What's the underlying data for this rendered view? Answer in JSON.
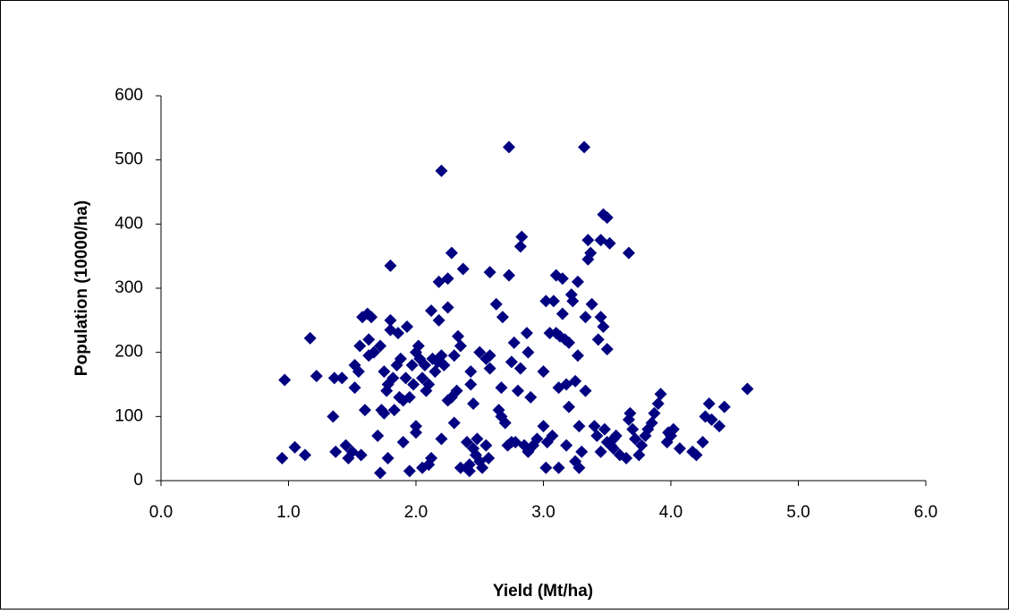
{
  "chart_data": {
    "type": "scatter",
    "x_label": "Yield (Mt/ha)",
    "y_label": "Population (10000/ha)",
    "color": "#000080",
    "xlim": [
      0,
      6
    ],
    "xticks": [
      {
        "value": 0,
        "label": "0.0"
      },
      {
        "value": 1,
        "label": "1.0"
      },
      {
        "value": 2,
        "label": "2.0"
      },
      {
        "value": 3,
        "label": "3.0"
      },
      {
        "value": 4,
        "label": "4.0"
      },
      {
        "value": 5,
        "label": "5.0"
      },
      {
        "value": 6,
        "label": "6.0"
      }
    ],
    "ylim": [
      0,
      600
    ],
    "yticks": [
      0,
      100,
      200,
      300,
      400,
      500,
      600
    ],
    "grid": false,
    "x": [
      0.95,
      0.97,
      1.05,
      1.13,
      1.17,
      1.22,
      1.35,
      1.36,
      1.37,
      1.42,
      1.45,
      1.47,
      1.5,
      1.52,
      1.52,
      1.55,
      1.56,
      1.57,
      1.58,
      1.6,
      1.62,
      1.63,
      1.63,
      1.65,
      1.67,
      1.7,
      1.72,
      1.72,
      1.73,
      1.75,
      1.75,
      1.77,
      1.78,
      1.78,
      1.8,
      1.8,
      1.8,
      1.82,
      1.83,
      1.85,
      1.86,
      1.87,
      1.88,
      1.9,
      1.9,
      1.92,
      1.93,
      1.95,
      1.95,
      1.97,
      1.98,
      2.0,
      2.0,
      2.0,
      2.02,
      2.03,
      2.05,
      2.05,
      2.07,
      2.08,
      2.1,
      2.1,
      2.12,
      2.12,
      2.13,
      2.15,
      2.17,
      2.18,
      2.18,
      2.2,
      2.2,
      2.2,
      2.22,
      2.25,
      2.25,
      2.25,
      2.28,
      2.28,
      2.3,
      2.3,
      2.32,
      2.33,
      2.35,
      2.35,
      2.37,
      2.4,
      2.42,
      2.42,
      2.43,
      2.43,
      2.45,
      2.45,
      2.47,
      2.48,
      2.5,
      2.5,
      2.52,
      2.55,
      2.55,
      2.57,
      2.58,
      2.58,
      2.58,
      2.63,
      2.65,
      2.67,
      2.67,
      2.68,
      2.7,
      2.72,
      2.73,
      2.73,
      2.75,
      2.75,
      2.77,
      2.78,
      2.8,
      2.82,
      2.82,
      2.83,
      2.85,
      2.87,
      2.88,
      2.88,
      2.9,
      2.92,
      2.95,
      3.0,
      3.0,
      3.02,
      3.02,
      3.03,
      3.05,
      3.07,
      3.08,
      3.1,
      3.1,
      3.12,
      3.12,
      3.13,
      3.15,
      3.15,
      3.17,
      3.18,
      3.18,
      3.2,
      3.2,
      3.22,
      3.23,
      3.25,
      3.25,
      3.27,
      3.27,
      3.28,
      3.28,
      3.3,
      3.32,
      3.33,
      3.33,
      3.35,
      3.35,
      3.37,
      3.38,
      3.4,
      3.42,
      3.43,
      3.45,
      3.45,
      3.45,
      3.47,
      3.47,
      3.48,
      3.5,
      3.5,
      3.5,
      3.52,
      3.53,
      3.55,
      3.55,
      3.57,
      3.6,
      3.65,
      3.67,
      3.67,
      3.68,
      3.7,
      3.72,
      3.75,
      3.77,
      3.8,
      3.82,
      3.85,
      3.87,
      3.9,
      3.92,
      3.97,
      3.98,
      4.0,
      4.02,
      4.07,
      4.17,
      4.2,
      4.25,
      4.27,
      4.3,
      4.32,
      4.38,
      4.42,
      4.6
    ],
    "y": [
      35,
      157,
      52,
      40,
      222,
      163,
      100,
      160,
      45,
      160,
      55,
      35,
      45,
      145,
      180,
      170,
      210,
      40,
      255,
      110,
      260,
      220,
      195,
      255,
      200,
      70,
      12,
      210,
      110,
      105,
      170,
      140,
      35,
      150,
      335,
      235,
      250,
      160,
      110,
      180,
      230,
      130,
      190,
      60,
      125,
      160,
      240,
      15,
      130,
      180,
      150,
      85,
      75,
      200,
      210,
      190,
      20,
      160,
      180,
      140,
      150,
      25,
      35,
      265,
      190,
      170,
      185,
      310,
      250,
      483,
      195,
      65,
      180,
      315,
      270,
      125,
      355,
      130,
      195,
      90,
      140,
      225,
      20,
      210,
      330,
      60,
      15,
      25,
      170,
      150,
      50,
      120,
      40,
      65,
      30,
      200,
      20,
      190,
      55,
      35,
      325,
      175,
      195,
      275,
      110,
      100,
      145,
      255,
      90,
      55,
      520,
      320,
      60,
      185,
      215,
      60,
      140,
      175,
      365,
      380,
      55,
      230,
      45,
      200,
      130,
      55,
      65,
      85,
      170,
      280,
      20,
      60,
      230,
      70,
      280,
      320,
      230,
      20,
      145,
      225,
      315,
      260,
      220,
      150,
      55,
      215,
      115,
      290,
      280,
      155,
      30,
      310,
      195,
      20,
      85,
      45,
      520,
      255,
      140,
      375,
      345,
      355,
      275,
      85,
      70,
      220,
      255,
      45,
      375,
      240,
      415,
      80,
      205,
      410,
      60,
      370,
      55,
      50,
      65,
      70,
      40,
      35,
      355,
      95,
      105,
      80,
      65,
      40,
      55,
      70,
      80,
      90,
      105,
      120,
      135,
      60,
      75,
      70,
      80,
      50,
      45,
      40,
      60,
      100,
      120,
      95,
      85,
      115,
      143
    ]
  }
}
